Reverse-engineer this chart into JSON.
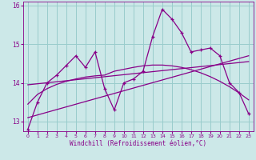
{
  "xlabel": "Windchill (Refroidissement éolien,°C)",
  "bg_color": "#cce8e8",
  "line_color": "#880088",
  "grid_color": "#99cccc",
  "spine_color": "#880088",
  "xlim": [
    -0.5,
    23.5
  ],
  "ylim": [
    12.75,
    16.1
  ],
  "yticks": [
    13,
    14,
    15,
    16
  ],
  "xticks": [
    0,
    1,
    2,
    3,
    4,
    5,
    6,
    7,
    8,
    9,
    10,
    11,
    12,
    13,
    14,
    15,
    16,
    17,
    18,
    19,
    20,
    21,
    22,
    23
  ],
  "series1": [
    12.8,
    13.5,
    14.0,
    14.2,
    14.45,
    14.7,
    14.4,
    14.8,
    13.85,
    13.3,
    14.0,
    14.1,
    14.3,
    15.2,
    15.9,
    15.65,
    15.3,
    14.8,
    14.85,
    14.9,
    14.7,
    14.0,
    13.75,
    13.2
  ],
  "series2_x": [
    0,
    23
  ],
  "series2_y": [
    13.1,
    14.7
  ],
  "series3_x": [
    0,
    23
  ],
  "series3_y": [
    13.95,
    14.55
  ],
  "series4": [
    13.45,
    13.7,
    13.85,
    13.96,
    14.04,
    14.1,
    14.15,
    14.18,
    14.2,
    14.3,
    14.35,
    14.4,
    14.44,
    14.46,
    14.46,
    14.44,
    14.4,
    14.34,
    14.26,
    14.16,
    14.04,
    13.9,
    13.74,
    13.56
  ]
}
